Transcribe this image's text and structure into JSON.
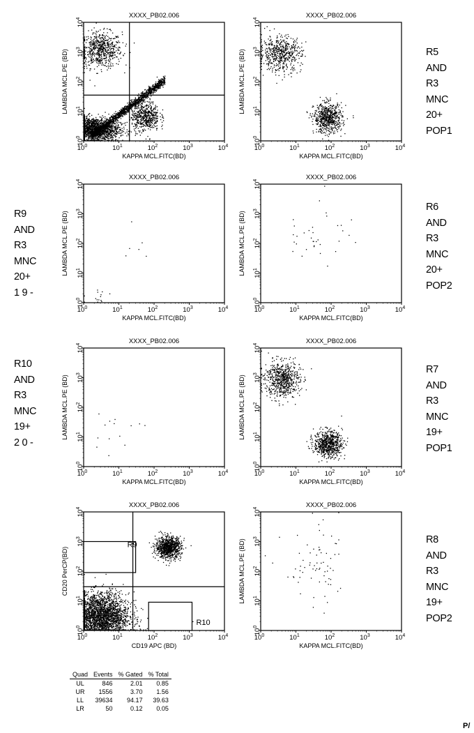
{
  "plots": [
    {
      "id": "p1",
      "title": "XXXX_PB02.006",
      "xlabel": "KAPPA MCL.FITC(BD)",
      "ylabel": "LAMBDA MCL.PE (BD)",
      "quad": [
        20,
        35
      ],
      "clusters": [
        {
          "cx": 3,
          "cy": 1200,
          "sx": 0.3,
          "sy": 0.3,
          "n": 650
        },
        {
          "cx": 2,
          "cy": 2.5,
          "sx": 0.35,
          "sy": 0.2,
          "n": 1600
        },
        {
          "cx": 55,
          "cy": 7,
          "sx": 0.2,
          "sy": 0.25,
          "n": 550
        },
        {
          "diag": true,
          "n": 1400
        }
      ]
    },
    {
      "id": "p2",
      "title": "XXXX_PB02.006",
      "xlabel": "KAPPA MCL.FITC(BD)",
      "ylabel": "LAMBDA MCL.PE (BD)",
      "clusters": [
        {
          "cx": 3.5,
          "cy": 900,
          "sx": 0.3,
          "sy": 0.3,
          "n": 550
        },
        {
          "cx": 80,
          "cy": 6,
          "sx": 0.2,
          "sy": 0.25,
          "n": 650
        }
      ]
    },
    {
      "id": "p3",
      "title": "XXXX_PB02.006",
      "xlabel": "KAPPA MCL.FITC(BD)",
      "ylabel": "LAMBDA MCL.PE (BD)",
      "clusters": [
        {
          "cx": 2.5,
          "cy": 1.6,
          "sx": 0.2,
          "sy": 0.15,
          "n": 14
        },
        {
          "cx": 60,
          "cy": 120,
          "sx": 0.4,
          "sy": 0.4,
          "n": 6
        }
      ]
    },
    {
      "id": "p4",
      "title": "XXXX_PB02.006",
      "xlabel": "KAPPA MCL.FITC(BD)",
      "ylabel": "LAMBDA MCL.PE (BD)",
      "clusters": [
        {
          "cx": 40,
          "cy": 250,
          "sx": 0.5,
          "sy": 0.6,
          "n": 35
        }
      ]
    },
    {
      "id": "p5",
      "title": "XXXX_PB02.006",
      "xlabel": "KAPPA MCL.FITC(BD)",
      "ylabel": "LAMBDA MCL.PE (BD)",
      "clusters": [
        {
          "cx": 12,
          "cy": 15,
          "sx": 0.4,
          "sy": 0.5,
          "n": 14
        }
      ]
    },
    {
      "id": "p6",
      "title": "XXXX_PB02.006",
      "xlabel": "KAPPA MCL.FITC(BD)",
      "ylabel": "LAMBDA MCL.PE (BD)",
      "clusters": [
        {
          "cx": 4,
          "cy": 900,
          "sx": 0.25,
          "sy": 0.3,
          "n": 650
        },
        {
          "cx": 80,
          "cy": 6,
          "sx": 0.2,
          "sy": 0.22,
          "n": 700
        }
      ]
    },
    {
      "id": "p7",
      "title": "XXXX_PB02.006",
      "xlabel": "CD19 APC (BD)",
      "ylabel": "CD20 PerCP(BD)",
      "quad": [
        25,
        30
      ],
      "clusters": [
        {
          "cx": 3,
          "cy": 3,
          "sx": 0.4,
          "sy": 0.4,
          "n": 2600
        },
        {
          "cx": 250,
          "cy": 650,
          "sx": 0.18,
          "sy": 0.18,
          "n": 900
        },
        {
          "cx": 150,
          "cy": 3,
          "sx": 0.4,
          "sy": 0.2,
          "n": 25
        }
      ],
      "gates": [
        {
          "label": "R9",
          "x": [
            1,
            30
          ],
          "y": [
            90,
            1000
          ]
        },
        {
          "label": "R10",
          "x": [
            70,
            1200
          ],
          "y": [
            1,
            9
          ]
        }
      ]
    },
    {
      "id": "p8",
      "title": "XXXX_PB02.006",
      "xlabel": "KAPPA MCL.FITC(BD)",
      "ylabel": "LAMBDA MCL.PE (BD)",
      "clusters": [
        {
          "cx": 40,
          "cy": 100,
          "sx": 0.5,
          "sy": 0.7,
          "n": 70
        }
      ]
    }
  ],
  "side_labels": {
    "r5": [
      "R5",
      "AND",
      "R3",
      "MNC",
      "20+",
      "POP1"
    ],
    "r9": [
      "R9",
      "AND",
      "R3",
      "MNC",
      "20+",
      "1 9 -"
    ],
    "r6": [
      "R6",
      "AND",
      "R3",
      "MNC",
      "20+",
      "POP2"
    ],
    "r10": [
      "R10",
      "AND",
      "R3",
      "MNC",
      "19+",
      "2 0 -"
    ],
    "r7": [
      "R7",
      "AND",
      "R3",
      "MNC",
      "19+",
      "POP1"
    ],
    "r8": [
      "R8",
      "AND",
      "R3",
      "MNC",
      "19+",
      "POP2"
    ]
  },
  "stats_table": {
    "headers": [
      "Quad",
      "Events",
      "% Gated",
      "% Total"
    ],
    "rows": [
      [
        "UL",
        "846",
        "2.01",
        "0.85"
      ],
      [
        "UR",
        "1556",
        "3.70",
        "1.56"
      ],
      [
        "LL",
        "39634",
        "94.17",
        "39.63"
      ],
      [
        "LR",
        "50",
        "0.12",
        "0.05"
      ]
    ]
  },
  "corner_text": "P/"
}
